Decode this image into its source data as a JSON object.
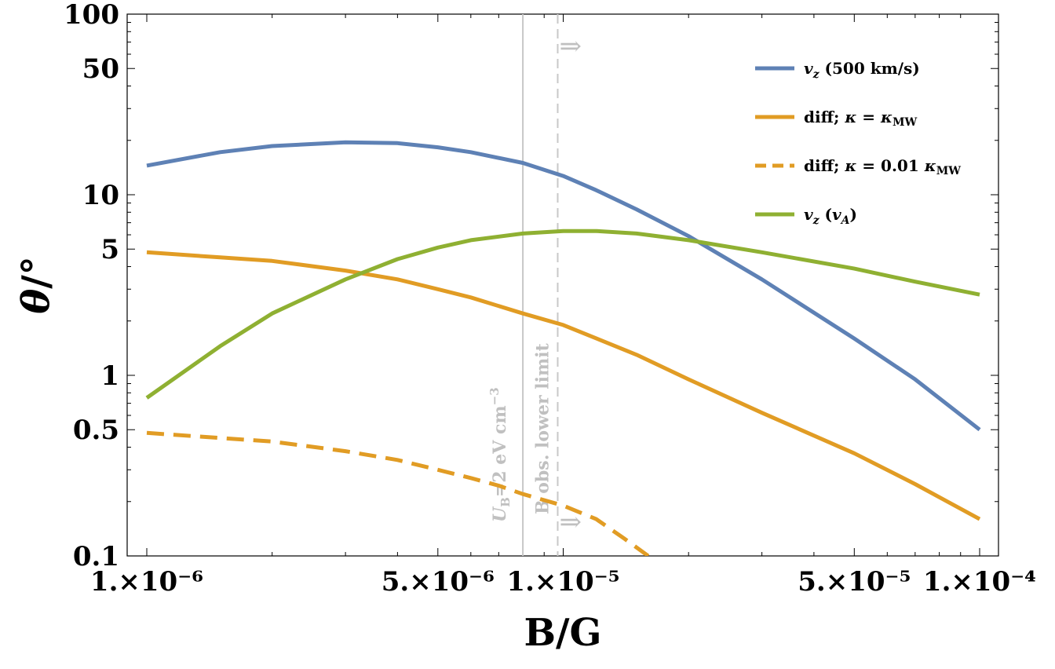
{
  "chart_data": {
    "type": "line",
    "xlabel": "B/G",
    "ylabel": "θ/°",
    "xscale": "log",
    "yscale": "log",
    "xlim": [
      1e-06,
      0.0001
    ],
    "ylim": [
      0.1,
      100
    ],
    "x_tick_labels": [
      {
        "value": 1e-06,
        "label": "1.×10⁻⁶"
      },
      {
        "value": 5e-06,
        "label": "5.×10⁻⁶"
      },
      {
        "value": 1e-05,
        "label": "1.×10⁻⁵"
      },
      {
        "value": 5e-05,
        "label": "5.×10⁻⁵"
      },
      {
        "value": 0.0001,
        "label": "1.×10⁻⁴"
      }
    ],
    "y_tick_labels": [
      {
        "value": 0.1,
        "label": "0.1"
      },
      {
        "value": 0.5,
        "label": "0.5"
      },
      {
        "value": 1,
        "label": "1"
      },
      {
        "value": 5,
        "label": "5"
      },
      {
        "value": 10,
        "label": "10"
      },
      {
        "value": 50,
        "label": "50"
      },
      {
        "value": 100,
        "label": "100"
      }
    ],
    "legend_position": "top-right",
    "grid": false,
    "series": [
      {
        "name": "v_z (500 km/s)",
        "color": "#5e81b5",
        "dash": "solid",
        "x": [
          1e-06,
          1.5e-06,
          2e-06,
          3e-06,
          4e-06,
          5e-06,
          6e-06,
          8e-06,
          1e-05,
          1.2e-05,
          1.5e-05,
          2e-05,
          3e-05,
          5e-05,
          7e-05,
          0.0001
        ],
        "y": [
          14.5,
          17.2,
          18.6,
          19.5,
          19.3,
          18.3,
          17.2,
          15.0,
          12.7,
          10.6,
          8.3,
          5.9,
          3.4,
          1.6,
          0.95,
          0.5
        ]
      },
      {
        "name": "diff; κ = κ_MW",
        "color": "#e19c24",
        "dash": "solid",
        "x": [
          1e-06,
          1.5e-06,
          2e-06,
          3e-06,
          4e-06,
          5e-06,
          6e-06,
          8e-06,
          1e-05,
          1.5e-05,
          2e-05,
          3e-05,
          5e-05,
          7e-05,
          0.0001
        ],
        "y": [
          4.8,
          4.5,
          4.3,
          3.8,
          3.4,
          3.0,
          2.7,
          2.2,
          1.9,
          1.3,
          0.95,
          0.62,
          0.37,
          0.25,
          0.16
        ]
      },
      {
        "name": "diff; κ = 0.01 κ_MW",
        "color": "#e19c24",
        "dash": "dashed",
        "x": [
          1e-06,
          1.5e-06,
          2e-06,
          3e-06,
          4e-06,
          5e-06,
          6e-06,
          7e-06,
          8e-06,
          1e-05,
          1.2e-05,
          1.4e-05,
          1.6e-05
        ],
        "y": [
          0.48,
          0.45,
          0.43,
          0.38,
          0.34,
          0.3,
          0.27,
          0.245,
          0.22,
          0.19,
          0.16,
          0.125,
          0.1
        ]
      },
      {
        "name": "v_z (v_A)",
        "color": "#8fb032",
        "dash": "solid",
        "x": [
          1e-06,
          1.5e-06,
          2e-06,
          3e-06,
          4e-06,
          5e-06,
          6e-06,
          8e-06,
          1e-05,
          1.2e-05,
          1.5e-05,
          2e-05,
          3e-05,
          5e-05,
          7e-05,
          0.0001
        ],
        "y": [
          0.75,
          1.45,
          2.2,
          3.4,
          4.4,
          5.1,
          5.6,
          6.1,
          6.3,
          6.3,
          6.1,
          5.6,
          4.8,
          3.9,
          3.3,
          2.8
        ]
      }
    ],
    "legend": [
      {
        "main": "v",
        "sub": "z",
        "rest": " (500 km/s)"
      },
      {
        "pre": "diff; ",
        "k": "κ",
        "eq": " = ",
        "k2": "κ",
        "sub2": "MW"
      },
      {
        "pre": "diff; ",
        "k": "κ",
        "eq": " = 0.01 ",
        "k2": "κ",
        "sub2": "MW"
      },
      {
        "main": "v",
        "sub": "z",
        "rest": " (",
        "main2": "v",
        "sub3": "A",
        "end": ")"
      }
    ],
    "annotations": [
      {
        "type": "vline",
        "x": 8e-06,
        "style": "solid",
        "color": "#c8c8c8",
        "label_main": "U",
        "label_sub": "B",
        "label_rest": "=2 eV cm",
        "label_sup": "−3"
      },
      {
        "type": "vline",
        "x": 9.7e-06,
        "style": "dashed",
        "color": "#c8c8c8",
        "label": "B obs. lower limit",
        "arrows": "⇒"
      }
    ]
  }
}
